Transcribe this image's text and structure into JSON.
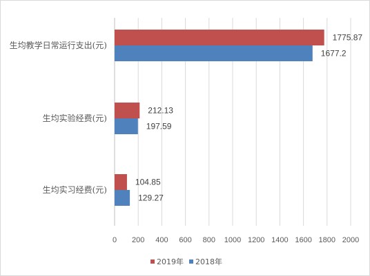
{
  "chart_data": {
    "type": "bar",
    "orientation": "horizontal",
    "categories": [
      "生均教学日常运行支出(元)",
      "生均实验经费(元)",
      "生均实习经费(元)"
    ],
    "series": [
      {
        "name": "2019年",
        "color": "#C0504D",
        "values": [
          1775.87,
          212.13,
          104.85
        ],
        "labels": [
          "1775.87",
          "212.13",
          "104.85"
        ]
      },
      {
        "name": "2018年",
        "color": "#4F81BD",
        "values": [
          1677.2,
          197.59,
          129.27
        ],
        "labels": [
          "1677.2",
          "197.59",
          "129.27"
        ]
      }
    ],
    "xlim": [
      0,
      2000
    ],
    "xticks": [
      "0",
      "200",
      "400",
      "600",
      "800",
      "1000",
      "1200",
      "1400",
      "1600",
      "1800",
      "2000"
    ],
    "grid": "vertical",
    "legend_position": "bottom",
    "title": "",
    "xlabel": "",
    "ylabel": ""
  }
}
